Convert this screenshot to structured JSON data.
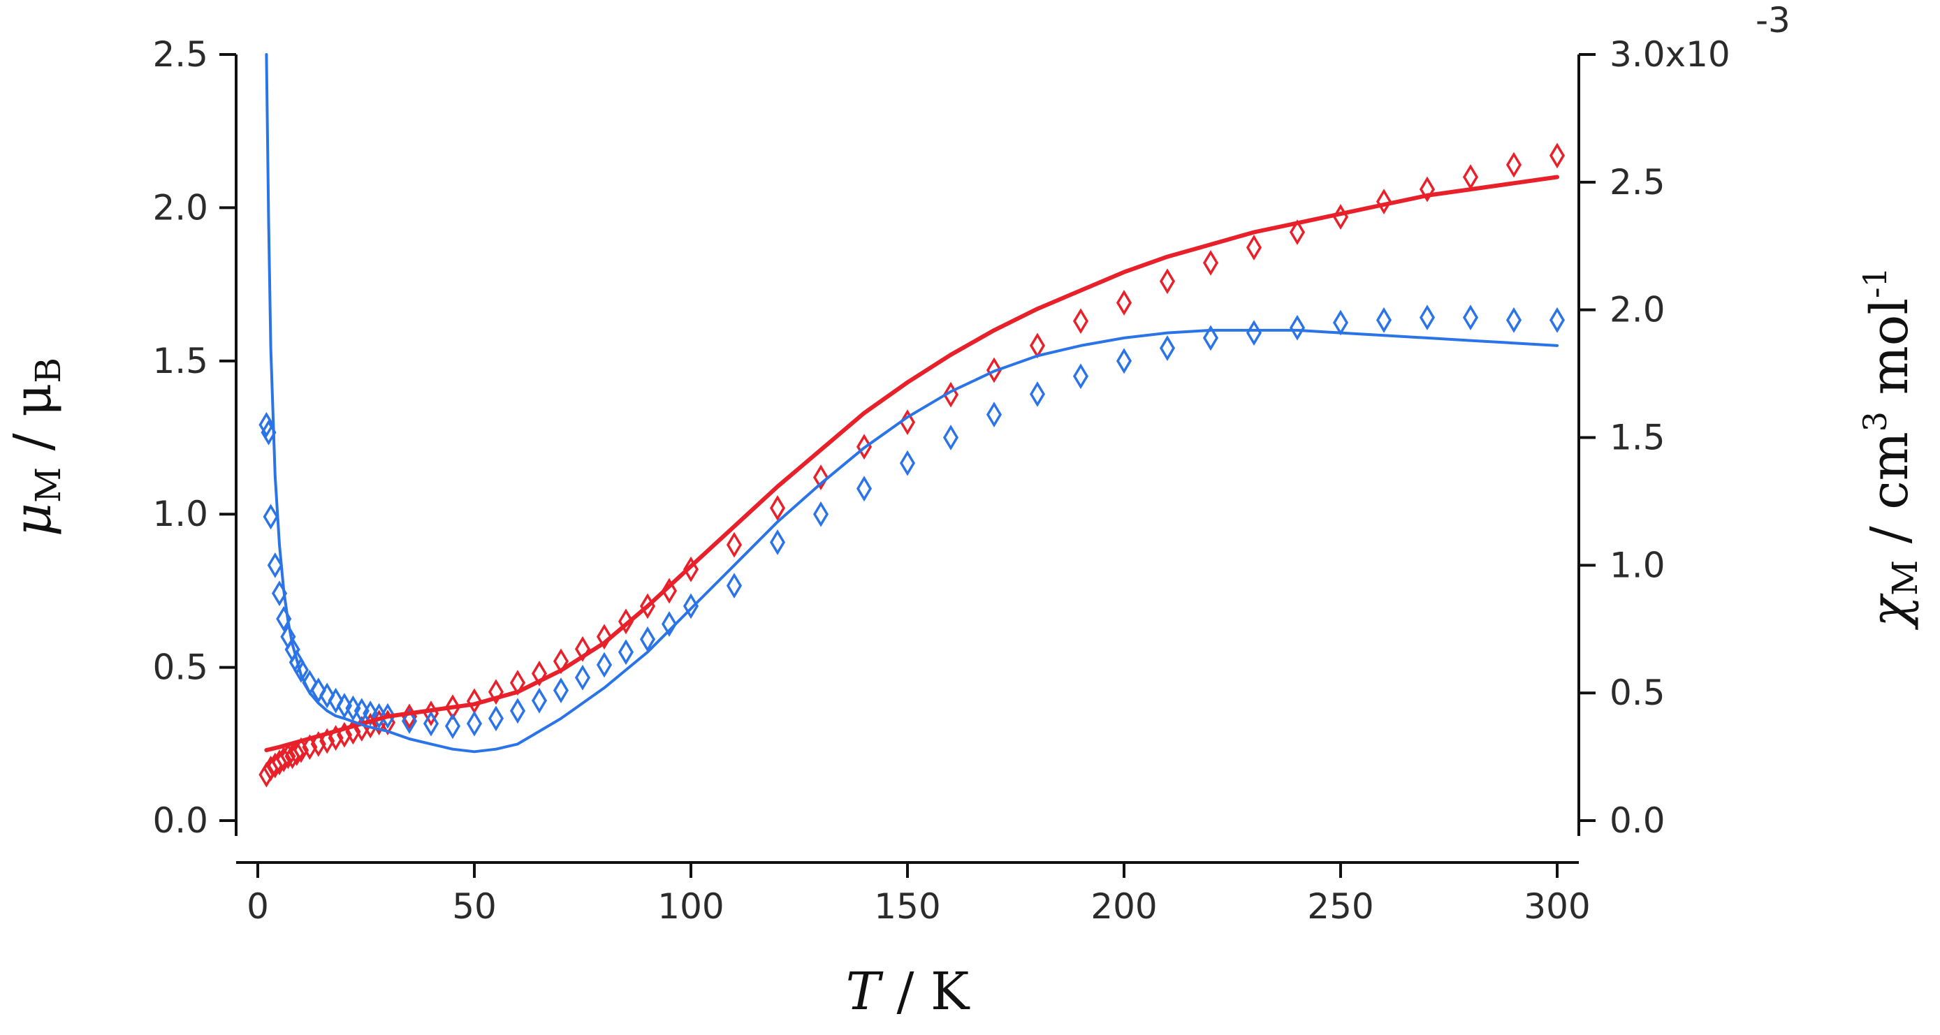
{
  "chart_data": {
    "type": "scatter",
    "title": "",
    "xlabel": {
      "symbol": "T",
      "unit": "K"
    },
    "ylabel_left": {
      "symbol": "μ",
      "sub": "M",
      "unit": "μ",
      "unit_sub": "B"
    },
    "ylabel_right": {
      "symbol": "χ",
      "sub": "M",
      "unit": "cm",
      "unit_sup": "3",
      "unit2": "mol",
      "unit2_sup": "-1"
    },
    "xlim": [
      -5,
      305
    ],
    "ylim_left": [
      -0.05,
      2.5
    ],
    "ylim_right": [
      -0.06,
      3.0
    ],
    "x_ticks": [
      0,
      50,
      100,
      150,
      200,
      250,
      300
    ],
    "x_tick_labels": [
      "0",
      "50",
      "100",
      "150",
      "200",
      "250",
      "300"
    ],
    "y_left_ticks": [
      0.0,
      0.5,
      1.0,
      1.5,
      2.0,
      2.5
    ],
    "y_left_tick_labels": [
      "0.0",
      "0.5",
      "1.0",
      "1.5",
      "2.0",
      "2.5"
    ],
    "y_right_ticks": [
      0.0,
      0.5,
      1.0,
      1.5,
      2.0,
      2.5,
      3.0
    ],
    "y_right_tick_labels": [
      "0.0",
      "0.5",
      "1.0",
      "1.5",
      "2.0",
      "2.5",
      "3.0x10"
    ],
    "y_right_exponent": "-3",
    "legend": "none",
    "grid": false,
    "colors": {
      "red": "#e8202a",
      "blue": "#2a74e8"
    },
    "series": [
      {
        "name": "mu_M experimental (red diamonds)",
        "axis": "left",
        "style": "diamond",
        "color": "#e8202a",
        "x": [
          2,
          3,
          4,
          5,
          6,
          7,
          8,
          9,
          10,
          12,
          14,
          16,
          18,
          20,
          22,
          24,
          26,
          28,
          30,
          35,
          40,
          45,
          50,
          55,
          60,
          65,
          70,
          75,
          80,
          85,
          90,
          95,
          100,
          110,
          120,
          130,
          140,
          150,
          160,
          170,
          180,
          190,
          200,
          210,
          220,
          230,
          240,
          250,
          260,
          270,
          280,
          290,
          300
        ],
        "y": [
          0.15,
          0.17,
          0.18,
          0.19,
          0.2,
          0.21,
          0.21,
          0.22,
          0.23,
          0.24,
          0.25,
          0.26,
          0.27,
          0.28,
          0.29,
          0.3,
          0.31,
          0.32,
          0.32,
          0.34,
          0.35,
          0.37,
          0.39,
          0.42,
          0.45,
          0.48,
          0.52,
          0.56,
          0.6,
          0.65,
          0.7,
          0.75,
          0.82,
          0.9,
          1.02,
          1.12,
          1.22,
          1.3,
          1.39,
          1.47,
          1.55,
          1.63,
          1.69,
          1.76,
          1.82,
          1.87,
          1.92,
          1.97,
          2.02,
          2.06,
          2.1,
          2.14,
          2.17
        ]
      },
      {
        "name": "chi_M experimental (blue diamonds)",
        "axis": "right",
        "style": "diamond",
        "color": "#2a74e8",
        "x": [
          2,
          2.5,
          3,
          4,
          5,
          6,
          7,
          8,
          9,
          10,
          12,
          14,
          16,
          18,
          20,
          22,
          24,
          26,
          28,
          30,
          35,
          40,
          45,
          50,
          55,
          60,
          65,
          70,
          75,
          80,
          85,
          90,
          95,
          100,
          110,
          120,
          130,
          140,
          150,
          160,
          170,
          180,
          190,
          200,
          210,
          220,
          230,
          240,
          250,
          260,
          270,
          280,
          290,
          300
        ],
        "y": [
          1.55,
          1.52,
          1.19,
          1.0,
          0.89,
          0.79,
          0.72,
          0.67,
          0.62,
          0.59,
          0.54,
          0.51,
          0.49,
          0.47,
          0.45,
          0.44,
          0.43,
          0.42,
          0.41,
          0.41,
          0.39,
          0.38,
          0.37,
          0.38,
          0.4,
          0.43,
          0.47,
          0.51,
          0.56,
          0.61,
          0.66,
          0.71,
          0.77,
          0.84,
          0.92,
          1.09,
          1.2,
          1.3,
          1.4,
          1.5,
          1.59,
          1.67,
          1.74,
          1.8,
          1.85,
          1.89,
          1.91,
          1.93,
          1.95,
          1.96,
          1.97,
          1.97,
          1.96,
          1.96
        ]
      },
      {
        "name": "mu_M fit (red line)",
        "axis": "left",
        "style": "line",
        "color": "#e8202a",
        "x": [
          2,
          5,
          10,
          15,
          20,
          25,
          30,
          35,
          40,
          45,
          50,
          60,
          70,
          80,
          90,
          100,
          110,
          120,
          130,
          140,
          150,
          160,
          170,
          180,
          190,
          200,
          210,
          220,
          230,
          240,
          250,
          260,
          270,
          280,
          290,
          300
        ],
        "y": [
          0.23,
          0.24,
          0.26,
          0.28,
          0.3,
          0.32,
          0.34,
          0.35,
          0.36,
          0.37,
          0.38,
          0.42,
          0.49,
          0.58,
          0.7,
          0.83,
          0.96,
          1.09,
          1.21,
          1.33,
          1.43,
          1.52,
          1.6,
          1.67,
          1.73,
          1.79,
          1.84,
          1.88,
          1.92,
          1.95,
          1.98,
          2.01,
          2.04,
          2.06,
          2.08,
          2.1
        ]
      },
      {
        "name": "chi_M fit (blue line)",
        "axis": "right",
        "style": "line",
        "color": "#2a74e8",
        "x": [
          2,
          2.5,
          3,
          4,
          5,
          6,
          7,
          8,
          10,
          12,
          14,
          16,
          18,
          20,
          25,
          30,
          35,
          40,
          45,
          50,
          55,
          60,
          70,
          80,
          90,
          100,
          110,
          120,
          130,
          140,
          150,
          160,
          170,
          180,
          190,
          200,
          210,
          220,
          230,
          240,
          250,
          260,
          270,
          280,
          290,
          300
        ],
        "y": [
          3.0,
          2.35,
          1.85,
          1.35,
          1.08,
          0.9,
          0.78,
          0.69,
          0.57,
          0.5,
          0.46,
          0.43,
          0.41,
          0.4,
          0.37,
          0.35,
          0.32,
          0.3,
          0.28,
          0.27,
          0.28,
          0.3,
          0.4,
          0.52,
          0.66,
          0.83,
          1.0,
          1.17,
          1.32,
          1.46,
          1.58,
          1.68,
          1.76,
          1.82,
          1.86,
          1.89,
          1.91,
          1.92,
          1.92,
          1.92,
          1.91,
          1.9,
          1.89,
          1.88,
          1.87,
          1.86
        ]
      }
    ]
  }
}
